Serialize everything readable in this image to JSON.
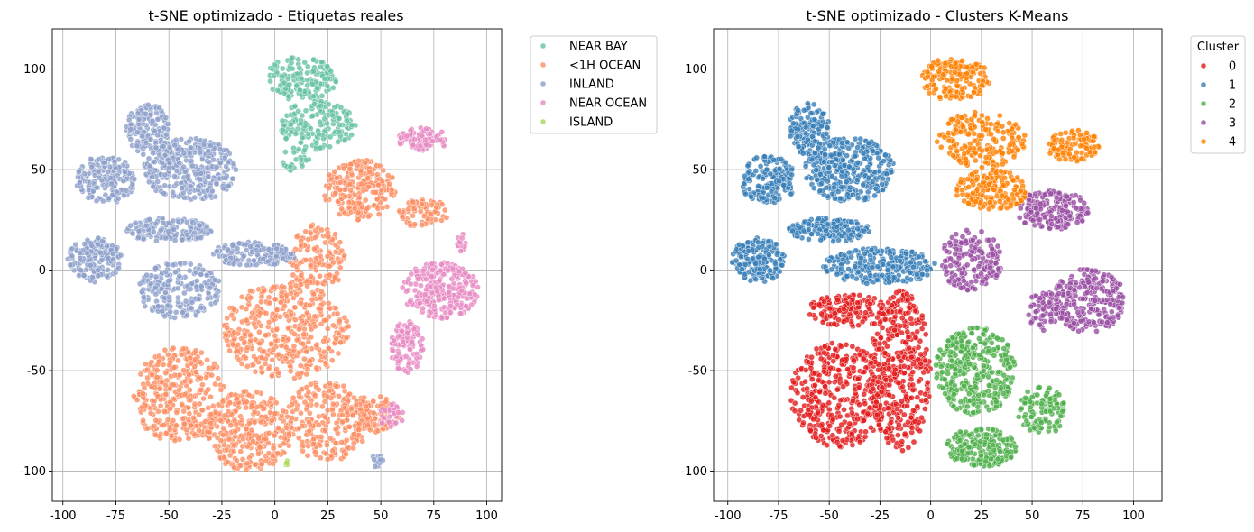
{
  "chart_data": [
    {
      "type": "scatter",
      "title": "t-SNE optimizado - Etiquetas reales",
      "xlabel": "",
      "ylabel": "",
      "xlim": [
        -105,
        107
      ],
      "ylim": [
        -115,
        120
      ],
      "xticks": [
        -100,
        -75,
        -50,
        -25,
        0,
        25,
        50,
        75,
        100
      ],
      "yticks": [
        -100,
        -50,
        0,
        50,
        100
      ],
      "grid": true,
      "legend_placement": "outside-top-right",
      "legend_title": "",
      "series": [
        {
          "name": "NEAR BAY",
          "color": "#66c2a5",
          "clusters": [
            {
              "cx": 12,
              "cy": 95,
              "rx": 17,
              "ry": 11,
              "n": 150
            },
            {
              "cx": 20,
              "cy": 72,
              "rx": 18,
              "ry": 12,
              "n": 160
            },
            {
              "cx": 10,
              "cy": 55,
              "rx": 7,
              "ry": 6,
              "n": 25
            }
          ]
        },
        {
          "name": "<1H OCEAN",
          "color": "#fc8d62",
          "clusters": [
            {
              "cx": 40,
              "cy": 40,
              "rx": 17,
              "ry": 15,
              "n": 210
            },
            {
              "cx": 70,
              "cy": 28,
              "rx": 12,
              "ry": 8,
              "n": 70
            },
            {
              "cx": 20,
              "cy": 5,
              "rx": 13,
              "ry": 18,
              "n": 130
            },
            {
              "cx": 5,
              "cy": -30,
              "rx": 30,
              "ry": 24,
              "n": 400
            },
            {
              "cx": -45,
              "cy": -62,
              "rx": 22,
              "ry": 24,
              "n": 320
            },
            {
              "cx": -12,
              "cy": -80,
              "rx": 20,
              "ry": 20,
              "n": 300
            },
            {
              "cx": 25,
              "cy": -75,
              "rx": 20,
              "ry": 20,
              "n": 230
            },
            {
              "cx": 45,
              "cy": -72,
              "rx": 14,
              "ry": 10,
              "n": 90
            }
          ]
        },
        {
          "name": "INLAND",
          "color": "#8da0cb",
          "clusters": [
            {
              "cx": -60,
              "cy": 70,
              "rx": 10,
              "ry": 13,
              "n": 140
            },
            {
              "cx": -40,
              "cy": 50,
              "rx": 22,
              "ry": 16,
              "n": 330
            },
            {
              "cx": -80,
              "cy": 45,
              "rx": 14,
              "ry": 12,
              "n": 170
            },
            {
              "cx": -50,
              "cy": 20,
              "rx": 20,
              "ry": 6,
              "n": 150
            },
            {
              "cx": -85,
              "cy": 5,
              "rx": 13,
              "ry": 11,
              "n": 170
            },
            {
              "cx": -45,
              "cy": -10,
              "rx": 20,
              "ry": 14,
              "n": 220
            },
            {
              "cx": -10,
              "cy": 8,
              "rx": 20,
              "ry": 6,
              "n": 150
            },
            {
              "cx": 48,
              "cy": -95,
              "rx": 4,
              "ry": 3,
              "n": 14
            }
          ]
        },
        {
          "name": "NEAR OCEAN",
          "color": "#e78ac3",
          "clusters": [
            {
              "cx": 70,
              "cy": 65,
              "rx": 12,
              "ry": 6,
              "n": 90
            },
            {
              "cx": 78,
              "cy": -10,
              "rx": 18,
              "ry": 14,
              "n": 240
            },
            {
              "cx": 62,
              "cy": -38,
              "rx": 8,
              "ry": 13,
              "n": 100
            },
            {
              "cx": 88,
              "cy": 14,
              "rx": 2,
              "ry": 5,
              "n": 14
            },
            {
              "cx": 55,
              "cy": -72,
              "rx": 6,
              "ry": 6,
              "n": 30
            }
          ]
        },
        {
          "name": "ISLAND",
          "color": "#a6d854",
          "clusters": [
            {
              "cx": 6,
              "cy": -96,
              "rx": 1.5,
              "ry": 1.5,
              "n": 4
            }
          ]
        }
      ]
    },
    {
      "type": "scatter",
      "title": "t-SNE optimizado - Clusters K-Means",
      "xlabel": "",
      "ylabel": "",
      "xlim": [
        -107,
        114
      ],
      "ylim": [
        -115,
        120
      ],
      "xticks": [
        -100,
        -75,
        -50,
        -25,
        0,
        25,
        50,
        75,
        100
      ],
      "yticks": [
        -100,
        -50,
        0,
        50,
        100
      ],
      "grid": true,
      "legend_placement": "outside-top-right",
      "legend_title": "Cluster",
      "series": [
        {
          "name": "0",
          "color": "#e41a1c",
          "clusters": [
            {
              "cx": -40,
              "cy": -20,
              "rx": 22,
              "ry": 8,
              "n": 150
            },
            {
              "cx": -45,
              "cy": -62,
              "rx": 24,
              "ry": 26,
              "n": 380
            },
            {
              "cx": -15,
              "cy": -50,
              "rx": 15,
              "ry": 40,
              "n": 380
            }
          ]
        },
        {
          "name": "1",
          "color": "#377eb8",
          "clusters": [
            {
              "cx": -60,
              "cy": 70,
              "rx": 10,
              "ry": 13,
              "n": 140
            },
            {
              "cx": -40,
              "cy": 50,
              "rx": 22,
              "ry": 16,
              "n": 330
            },
            {
              "cx": -80,
              "cy": 45,
              "rx": 14,
              "ry": 12,
              "n": 170
            },
            {
              "cx": -50,
              "cy": 20,
              "rx": 20,
              "ry": 6,
              "n": 150
            },
            {
              "cx": -85,
              "cy": 5,
              "rx": 13,
              "ry": 11,
              "n": 170
            },
            {
              "cx": -25,
              "cy": 2,
              "rx": 28,
              "ry": 9,
              "n": 250
            }
          ]
        },
        {
          "name": "2",
          "color": "#4daf4a",
          "clusters": [
            {
              "cx": 22,
              "cy": -50,
              "rx": 20,
              "ry": 22,
              "n": 350
            },
            {
              "cx": 25,
              "cy": -88,
              "rx": 17,
              "ry": 10,
              "n": 200
            },
            {
              "cx": 55,
              "cy": -70,
              "rx": 12,
              "ry": 12,
              "n": 110
            }
          ]
        },
        {
          "name": "3",
          "color": "#984ea3",
          "clusters": [
            {
              "cx": 20,
              "cy": 5,
              "rx": 15,
              "ry": 16,
              "n": 170
            },
            {
              "cx": 60,
              "cy": 30,
              "rx": 18,
              "ry": 10,
              "n": 180
            },
            {
              "cx": 78,
              "cy": -15,
              "rx": 18,
              "ry": 16,
              "n": 260
            },
            {
              "cx": 55,
              "cy": -20,
              "rx": 8,
              "ry": 10,
              "n": 60
            }
          ]
        },
        {
          "name": "4",
          "color": "#ff7f00",
          "clusters": [
            {
              "cx": 12,
              "cy": 95,
              "rx": 17,
              "ry": 11,
              "n": 150
            },
            {
              "cx": 25,
              "cy": 65,
              "rx": 22,
              "ry": 14,
              "n": 200
            },
            {
              "cx": 30,
              "cy": 40,
              "rx": 18,
              "ry": 10,
              "n": 170
            },
            {
              "cx": 70,
              "cy": 62,
              "rx": 13,
              "ry": 8,
              "n": 100
            }
          ]
        }
      ]
    }
  ]
}
